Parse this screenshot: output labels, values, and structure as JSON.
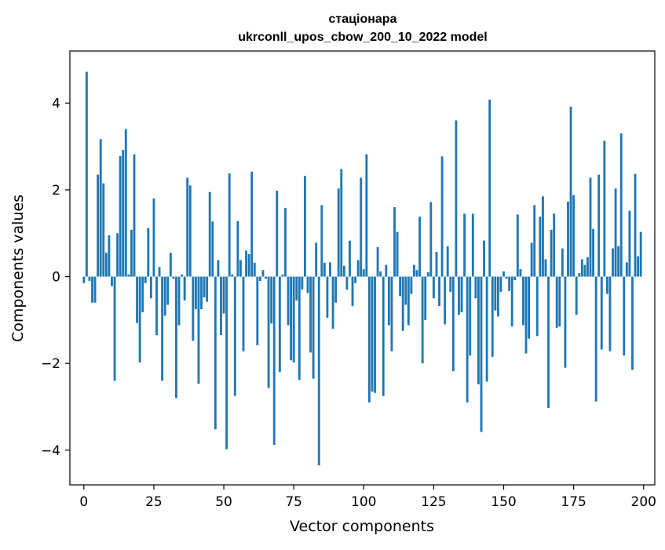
{
  "chart_data": {
    "type": "bar",
    "title_lines": [
      "стаціонара",
      "ukrconll_upos_cbow_200_10_2022 model"
    ],
    "xlabel": "Vector components",
    "ylabel": "Components values",
    "xlim": [
      -5,
      204
    ],
    "ylim": [
      -4.8,
      5.2
    ],
    "xticks": [
      0,
      25,
      50,
      75,
      100,
      125,
      150,
      175,
      200
    ],
    "yticks": [
      4,
      2,
      0,
      -2,
      -4
    ],
    "ytick_labels": [
      "4",
      "2",
      "0",
      "−2",
      "−4"
    ],
    "grid": false,
    "legend": "none",
    "bar_color": "#1f77b4",
    "x": [
      0,
      1,
      2,
      3,
      4,
      5,
      6,
      7,
      8,
      9,
      10,
      11,
      12,
      13,
      14,
      15,
      16,
      17,
      18,
      19,
      20,
      21,
      22,
      23,
      24,
      25,
      26,
      27,
      28,
      29,
      30,
      31,
      32,
      33,
      34,
      35,
      36,
      37,
      38,
      39,
      40,
      41,
      42,
      43,
      44,
      45,
      46,
      47,
      48,
      49,
      50,
      51,
      52,
      53,
      54,
      55,
      56,
      57,
      58,
      59,
      60,
      61,
      62,
      63,
      64,
      65,
      66,
      67,
      68,
      69,
      70,
      71,
      72,
      73,
      74,
      75,
      76,
      77,
      78,
      79,
      80,
      81,
      82,
      83,
      84,
      85,
      86,
      87,
      88,
      89,
      90,
      91,
      92,
      93,
      94,
      95,
      96,
      97,
      98,
      99,
      100,
      101,
      102,
      103,
      104,
      105,
      106,
      107,
      108,
      109,
      110,
      111,
      112,
      113,
      114,
      115,
      116,
      117,
      118,
      119,
      120,
      121,
      122,
      123,
      124,
      125,
      126,
      127,
      128,
      129,
      130,
      131,
      132,
      133,
      134,
      135,
      136,
      137,
      138,
      139,
      140,
      141,
      142,
      143,
      144,
      145,
      146,
      147,
      148,
      149,
      150,
      151,
      152,
      153,
      154,
      155,
      156,
      157,
      158,
      159,
      160,
      161,
      162,
      163,
      164,
      165,
      166,
      167,
      168,
      169,
      170,
      171,
      172,
      173,
      174,
      175,
      176,
      177,
      178,
      179,
      180,
      181,
      182,
      183,
      184,
      185,
      186,
      187,
      188,
      189,
      190,
      191,
      192,
      193,
      194,
      195,
      196,
      197,
      198,
      199
    ],
    "values": [
      -0.15,
      4.72,
      -0.1,
      -0.6,
      -0.6,
      2.35,
      3.17,
      2.15,
      0.55,
      0.95,
      -0.22,
      -2.4,
      1.0,
      2.78,
      2.92,
      3.4,
      0.05,
      1.08,
      2.82,
      -1.07,
      -1.98,
      -0.82,
      -0.15,
      1.12,
      -0.5,
      1.8,
      -1.35,
      0.22,
      -2.4,
      -0.9,
      -0.65,
      0.55,
      -0.05,
      -2.8,
      -1.12,
      0.05,
      -0.55,
      2.28,
      2.1,
      -1.48,
      -0.75,
      -2.47,
      -0.75,
      -0.48,
      -0.58,
      1.95,
      1.27,
      -3.52,
      0.38,
      -1.35,
      -0.85,
      -3.98,
      2.38,
      0.05,
      -2.75,
      1.28,
      0.38,
      -1.72,
      0.6,
      0.52,
      2.42,
      0.32,
      -1.58,
      -0.1,
      0.15,
      -0.05,
      -2.57,
      -1.08,
      -3.88,
      1.98,
      -2.2,
      0.05,
      1.58,
      -1.12,
      -1.93,
      -1.98,
      -0.55,
      -2.38,
      -0.3,
      2.32,
      -0.38,
      -1.75,
      -2.35,
      0.78,
      -4.35,
      1.65,
      0.32,
      -0.95,
      0.33,
      -1.2,
      -0.6,
      2.03,
      2.48,
      0.25,
      -0.3,
      0.83,
      -0.68,
      -0.15,
      0.38,
      2.28,
      0.17,
      2.82,
      -2.9,
      -2.65,
      -2.68,
      0.68,
      0.12,
      -2.75,
      0.27,
      -1.12,
      -1.72,
      1.6,
      1.03,
      -0.45,
      -1.25,
      -0.65,
      -1.12,
      -0.4,
      0.27,
      0.15,
      1.38,
      -2.0,
      -1.0,
      0.1,
      1.72,
      -0.5,
      0.57,
      -0.68,
      2.77,
      -1.1,
      0.7,
      -0.35,
      -2.18,
      3.6,
      -0.88,
      -0.82,
      1.45,
      -2.9,
      -1.82,
      1.45,
      -0.5,
      -2.48,
      -3.58,
      0.83,
      -2.42,
      4.08,
      -1.85,
      -0.78,
      -0.92,
      -0.35,
      0.12,
      -0.05,
      -0.33,
      -1.15,
      -0.08,
      1.43,
      0.17,
      -1.12,
      -1.77,
      -1.43,
      0.78,
      1.65,
      -1.37,
      1.38,
      1.85,
      0.4,
      -3.03,
      1.08,
      1.45,
      -1.18,
      -1.15,
      0.65,
      -2.1,
      1.73,
      3.92,
      1.88,
      -0.88,
      0.08,
      0.4,
      0.27,
      0.45,
      2.28,
      1.1,
      -2.88,
      2.35,
      -1.68,
      3.13,
      -0.4,
      -1.72,
      0.65,
      2.03,
      0.7,
      3.3,
      -1.82,
      0.33,
      1.52,
      -2.15,
      2.37,
      0.47,
      1.03
    ]
  }
}
